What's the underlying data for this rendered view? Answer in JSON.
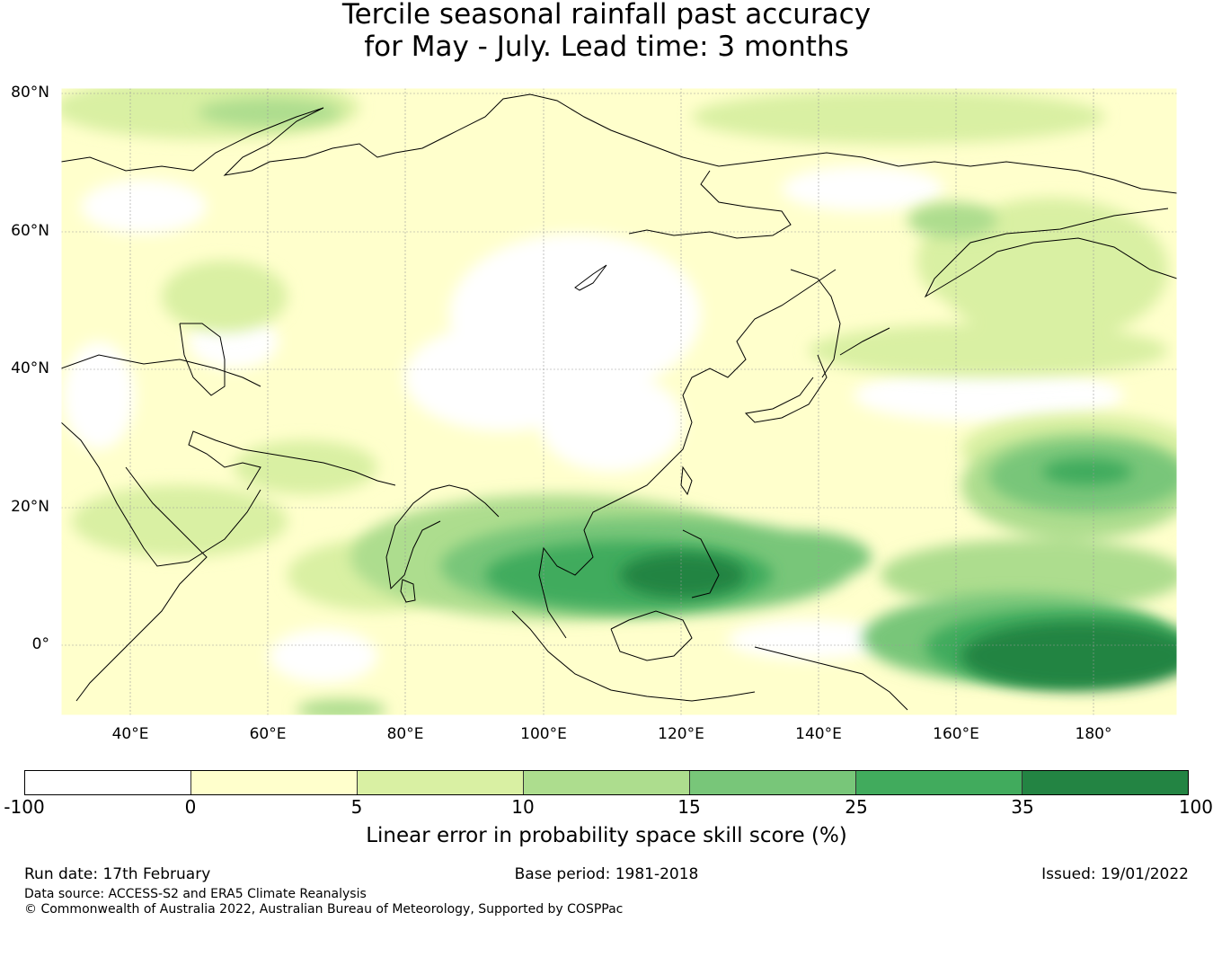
{
  "title_line1": "Tercile seasonal rainfall past accuracy",
  "title_line2": "for May - July. Lead time: 3 months",
  "lat_labels": [
    "80°N",
    "60°N",
    "40°N",
    "20°N",
    "0°"
  ],
  "lon_labels": [
    "40°E",
    "60°E",
    "80°E",
    "100°E",
    "120°E",
    "140°E",
    "160°E",
    "180°"
  ],
  "colorbar": {
    "ticks": [
      "-100",
      "0",
      "5",
      "10",
      "15",
      "25",
      "35",
      "100"
    ],
    "colors": [
      "#ffffff",
      "#ffffcc",
      "#d9f0a3",
      "#addd8e",
      "#78c679",
      "#41ab5d",
      "#238443"
    ],
    "label": "Linear error in probability space skill score (%)"
  },
  "footer": {
    "run_date": "Run date: 17th February",
    "base_period": "Base period: 1981-2018",
    "issued": "Issued: 19/01/2022",
    "data_source": "Data source: ACCESS-S2 and ERA5 Climate Reanalysis",
    "copyright": "© Commonwealth of Australia 2022, Australian Bureau of Meteorology, Supported by COSPPac"
  }
}
